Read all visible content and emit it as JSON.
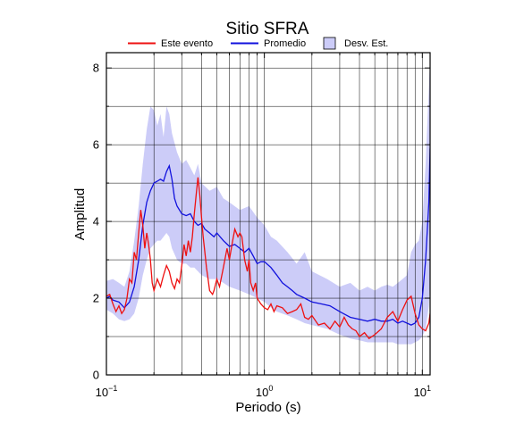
{
  "chart_data": {
    "type": "line",
    "title": "Sitio SFRA",
    "xlabel": "Periodo (s)",
    "ylabel": "Amplitud",
    "x_scale": "log",
    "xlim": [
      0.1,
      11.2
    ],
    "ylim": [
      0,
      8.4
    ],
    "grid": true,
    "legend_position": "top",
    "x_ticks": [
      {
        "value": 0.1,
        "base": "10",
        "exp": "−1"
      },
      {
        "value": 1,
        "base": "10",
        "exp": "0"
      },
      {
        "value": 10,
        "base": "10",
        "exp": "1"
      }
    ],
    "y_ticks": [
      0,
      2,
      4,
      6,
      8
    ],
    "legend": [
      {
        "label": "Este evento",
        "color": "#ee1111",
        "kind": "line"
      },
      {
        "label": "Promedio",
        "color": "#1111dd",
        "kind": "line"
      },
      {
        "label": "Desv. Est.",
        "color": "#ccccf8",
        "kind": "box"
      }
    ],
    "series": [
      {
        "name": "Este evento",
        "color": "#ee1111",
        "points": [
          [
            0.1,
            2.05
          ],
          [
            0.105,
            2.1
          ],
          [
            0.11,
            1.85
          ],
          [
            0.115,
            1.65
          ],
          [
            0.12,
            1.8
          ],
          [
            0.125,
            1.6
          ],
          [
            0.13,
            1.7
          ],
          [
            0.135,
            2.0
          ],
          [
            0.14,
            2.5
          ],
          [
            0.145,
            2.4
          ],
          [
            0.15,
            3.2
          ],
          [
            0.155,
            3.0
          ],
          [
            0.16,
            3.7
          ],
          [
            0.165,
            4.3
          ],
          [
            0.17,
            3.9
          ],
          [
            0.175,
            3.3
          ],
          [
            0.18,
            3.7
          ],
          [
            0.185,
            3.4
          ],
          [
            0.19,
            3.0
          ],
          [
            0.195,
            2.4
          ],
          [
            0.2,
            2.2
          ],
          [
            0.21,
            2.5
          ],
          [
            0.22,
            2.3
          ],
          [
            0.23,
            2.6
          ],
          [
            0.24,
            2.85
          ],
          [
            0.25,
            2.7
          ],
          [
            0.26,
            2.4
          ],
          [
            0.27,
            2.25
          ],
          [
            0.28,
            2.5
          ],
          [
            0.29,
            2.4
          ],
          [
            0.3,
            2.85
          ],
          [
            0.31,
            3.4
          ],
          [
            0.32,
            3.1
          ],
          [
            0.33,
            3.5
          ],
          [
            0.34,
            3.2
          ],
          [
            0.35,
            3.6
          ],
          [
            0.36,
            4.2
          ],
          [
            0.37,
            4.7
          ],
          [
            0.38,
            5.15
          ],
          [
            0.39,
            4.7
          ],
          [
            0.4,
            4.1
          ],
          [
            0.41,
            3.6
          ],
          [
            0.42,
            3.2
          ],
          [
            0.43,
            2.8
          ],
          [
            0.44,
            2.5
          ],
          [
            0.45,
            2.2
          ],
          [
            0.47,
            2.1
          ],
          [
            0.48,
            2.2
          ],
          [
            0.5,
            2.5
          ],
          [
            0.52,
            2.3
          ],
          [
            0.55,
            2.8
          ],
          [
            0.58,
            3.3
          ],
          [
            0.6,
            3.0
          ],
          [
            0.63,
            3.5
          ],
          [
            0.65,
            3.8
          ],
          [
            0.68,
            3.6
          ],
          [
            0.7,
            3.7
          ],
          [
            0.72,
            3.6
          ],
          [
            0.75,
            3.0
          ],
          [
            0.78,
            2.7
          ],
          [
            0.8,
            3.0
          ],
          [
            0.82,
            2.4
          ],
          [
            0.85,
            2.2
          ],
          [
            0.88,
            2.4
          ],
          [
            0.9,
            2.0
          ],
          [
            0.95,
            1.85
          ],
          [
            1.0,
            1.75
          ],
          [
            1.05,
            1.7
          ],
          [
            1.1,
            1.85
          ],
          [
            1.15,
            1.65
          ],
          [
            1.2,
            1.8
          ],
          [
            1.3,
            1.75
          ],
          [
            1.4,
            1.6
          ],
          [
            1.5,
            1.65
          ],
          [
            1.6,
            1.7
          ],
          [
            1.7,
            1.85
          ],
          [
            1.8,
            1.5
          ],
          [
            1.9,
            1.45
          ],
          [
            2.0,
            1.55
          ],
          [
            2.2,
            1.3
          ],
          [
            2.4,
            1.35
          ],
          [
            2.6,
            1.2
          ],
          [
            2.8,
            1.4
          ],
          [
            3.0,
            1.25
          ],
          [
            3.2,
            1.5
          ],
          [
            3.4,
            1.3
          ],
          [
            3.6,
            1.2
          ],
          [
            3.8,
            1.15
          ],
          [
            4.0,
            1.0
          ],
          [
            4.3,
            1.1
          ],
          [
            4.6,
            0.95
          ],
          [
            5.0,
            1.05
          ],
          [
            5.5,
            1.2
          ],
          [
            6.0,
            1.5
          ],
          [
            6.5,
            1.65
          ],
          [
            7.0,
            1.4
          ],
          [
            7.5,
            1.7
          ],
          [
            8.0,
            1.95
          ],
          [
            8.5,
            2.05
          ],
          [
            9.0,
            1.6
          ],
          [
            9.5,
            1.3
          ],
          [
            10.0,
            1.2
          ],
          [
            10.5,
            1.15
          ],
          [
            11.0,
            1.35
          ],
          [
            11.2,
            1.6
          ]
        ]
      },
      {
        "name": "Promedio",
        "color": "#1111dd",
        "points": [
          [
            0.1,
            2.0
          ],
          [
            0.105,
            2.05
          ],
          [
            0.11,
            1.95
          ],
          [
            0.12,
            1.9
          ],
          [
            0.13,
            1.75
          ],
          [
            0.14,
            1.9
          ],
          [
            0.15,
            2.3
          ],
          [
            0.16,
            3.0
          ],
          [
            0.17,
            3.9
          ],
          [
            0.18,
            4.5
          ],
          [
            0.19,
            4.8
          ],
          [
            0.2,
            5.0
          ],
          [
            0.21,
            5.05
          ],
          [
            0.22,
            5.1
          ],
          [
            0.23,
            5.05
          ],
          [
            0.24,
            5.3
          ],
          [
            0.25,
            5.45
          ],
          [
            0.26,
            5.1
          ],
          [
            0.27,
            4.6
          ],
          [
            0.28,
            4.4
          ],
          [
            0.3,
            4.2
          ],
          [
            0.32,
            4.15
          ],
          [
            0.34,
            4.2
          ],
          [
            0.36,
            4.0
          ],
          [
            0.38,
            3.9
          ],
          [
            0.4,
            3.95
          ],
          [
            0.42,
            3.8
          ],
          [
            0.45,
            3.7
          ],
          [
            0.48,
            3.6
          ],
          [
            0.5,
            3.7
          ],
          [
            0.55,
            3.5
          ],
          [
            0.6,
            3.35
          ],
          [
            0.65,
            3.4
          ],
          [
            0.7,
            3.3
          ],
          [
            0.75,
            3.2
          ],
          [
            0.8,
            3.3
          ],
          [
            0.85,
            3.1
          ],
          [
            0.9,
            2.9
          ],
          [
            0.95,
            2.95
          ],
          [
            1.0,
            2.95
          ],
          [
            1.1,
            2.8
          ],
          [
            1.2,
            2.6
          ],
          [
            1.3,
            2.4
          ],
          [
            1.4,
            2.3
          ],
          [
            1.5,
            2.2
          ],
          [
            1.6,
            2.1
          ],
          [
            1.8,
            2.0
          ],
          [
            2.0,
            1.9
          ],
          [
            2.3,
            1.85
          ],
          [
            2.6,
            1.8
          ],
          [
            3.0,
            1.65
          ],
          [
            3.5,
            1.5
          ],
          [
            4.0,
            1.45
          ],
          [
            4.5,
            1.4
          ],
          [
            5.0,
            1.45
          ],
          [
            5.5,
            1.4
          ],
          [
            6.0,
            1.4
          ],
          [
            6.5,
            1.45
          ],
          [
            7.0,
            1.35
          ],
          [
            7.5,
            1.4
          ],
          [
            8.0,
            1.35
          ],
          [
            8.5,
            1.3
          ],
          [
            9.0,
            1.35
          ],
          [
            9.5,
            1.5
          ],
          [
            10.0,
            2.0
          ],
          [
            10.5,
            3.0
          ],
          [
            11.0,
            4.5
          ],
          [
            11.2,
            5.9
          ]
        ]
      }
    ],
    "band": {
      "name": "Desv. Est.",
      "color": "#ccccf8",
      "upper": [
        [
          0.1,
          2.45
        ],
        [
          0.11,
          2.5
        ],
        [
          0.12,
          2.4
        ],
        [
          0.13,
          2.3
        ],
        [
          0.14,
          2.7
        ],
        [
          0.15,
          3.5
        ],
        [
          0.16,
          4.4
        ],
        [
          0.17,
          5.5
        ],
        [
          0.18,
          6.4
        ],
        [
          0.19,
          7.0
        ],
        [
          0.2,
          6.9
        ],
        [
          0.21,
          6.5
        ],
        [
          0.22,
          6.8
        ],
        [
          0.23,
          6.2
        ],
        [
          0.24,
          7.0
        ],
        [
          0.25,
          6.8
        ],
        [
          0.26,
          6.3
        ],
        [
          0.28,
          5.8
        ],
        [
          0.3,
          5.5
        ],
        [
          0.32,
          5.6
        ],
        [
          0.34,
          5.4
        ],
        [
          0.36,
          5.2
        ],
        [
          0.38,
          5.5
        ],
        [
          0.4,
          5.0
        ],
        [
          0.45,
          4.8
        ],
        [
          0.5,
          4.9
        ],
        [
          0.55,
          4.6
        ],
        [
          0.6,
          4.5
        ],
        [
          0.7,
          4.3
        ],
        [
          0.8,
          4.4
        ],
        [
          0.9,
          4.1
        ],
        [
          1.0,
          3.9
        ],
        [
          1.1,
          3.6
        ],
        [
          1.2,
          3.5
        ],
        [
          1.4,
          3.2
        ],
        [
          1.6,
          2.9
        ],
        [
          1.8,
          3.2
        ],
        [
          2.0,
          2.7
        ],
        [
          2.5,
          2.5
        ],
        [
          3.0,
          2.3
        ],
        [
          3.5,
          2.4
        ],
        [
          4.0,
          2.2
        ],
        [
          4.5,
          2.3
        ],
        [
          5.0,
          2.2
        ],
        [
          5.5,
          2.3
        ],
        [
          6.0,
          2.35
        ],
        [
          6.5,
          2.3
        ],
        [
          7.0,
          2.4
        ],
        [
          7.5,
          2.5
        ],
        [
          8.0,
          2.6
        ],
        [
          8.5,
          3.2
        ],
        [
          9.0,
          3.4
        ],
        [
          9.5,
          3.5
        ],
        [
          10.0,
          4.0
        ],
        [
          10.5,
          5.5
        ],
        [
          11.0,
          7.5
        ],
        [
          11.2,
          8.2
        ]
      ],
      "lower": [
        [
          0.1,
          1.7
        ],
        [
          0.11,
          1.6
        ],
        [
          0.12,
          1.45
        ],
        [
          0.13,
          1.4
        ],
        [
          0.14,
          1.45
        ],
        [
          0.15,
          1.6
        ],
        [
          0.16,
          2.0
        ],
        [
          0.17,
          2.6
        ],
        [
          0.18,
          3.0
        ],
        [
          0.19,
          3.3
        ],
        [
          0.2,
          3.4
        ],
        [
          0.21,
          3.5
        ],
        [
          0.22,
          3.5
        ],
        [
          0.23,
          3.6
        ],
        [
          0.24,
          3.7
        ],
        [
          0.25,
          3.6
        ],
        [
          0.26,
          3.3
        ],
        [
          0.28,
          3.0
        ],
        [
          0.3,
          2.9
        ],
        [
          0.32,
          2.9
        ],
        [
          0.34,
          2.8
        ],
        [
          0.36,
          2.8
        ],
        [
          0.38,
          2.7
        ],
        [
          0.4,
          2.6
        ],
        [
          0.45,
          2.5
        ],
        [
          0.5,
          2.5
        ],
        [
          0.55,
          2.4
        ],
        [
          0.6,
          2.3
        ],
        [
          0.7,
          2.2
        ],
        [
          0.8,
          2.1
        ],
        [
          0.9,
          2.0
        ],
        [
          1.0,
          1.9
        ],
        [
          1.1,
          1.75
        ],
        [
          1.2,
          1.65
        ],
        [
          1.4,
          1.55
        ],
        [
          1.6,
          1.45
        ],
        [
          1.8,
          1.35
        ],
        [
          2.0,
          1.3
        ],
        [
          2.5,
          1.2
        ],
        [
          3.0,
          1.05
        ],
        [
          3.5,
          0.95
        ],
        [
          4.0,
          0.9
        ],
        [
          4.5,
          0.85
        ],
        [
          5.0,
          0.85
        ],
        [
          5.5,
          0.85
        ],
        [
          6.0,
          0.85
        ],
        [
          6.5,
          0.85
        ],
        [
          7.0,
          0.8
        ],
        [
          7.5,
          0.8
        ],
        [
          8.0,
          0.8
        ],
        [
          8.5,
          0.8
        ],
        [
          9.0,
          0.85
        ],
        [
          9.5,
          0.9
        ],
        [
          10.0,
          1.0
        ],
        [
          10.5,
          1.2
        ],
        [
          11.0,
          1.8
        ],
        [
          11.2,
          2.5
        ]
      ]
    }
  }
}
